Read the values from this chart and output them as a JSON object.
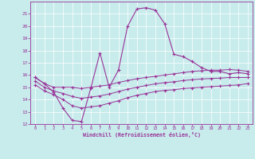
{
  "xlabel": "Windchill (Refroidissement éolien,°C)",
  "bg_color": "#c8ecec",
  "line_color": "#993399",
  "xlim": [
    -0.5,
    23.5
  ],
  "ylim": [
    12,
    22
  ],
  "yticks": [
    12,
    13,
    14,
    15,
    16,
    17,
    18,
    19,
    20,
    21
  ],
  "xticks": [
    0,
    1,
    2,
    3,
    4,
    5,
    6,
    7,
    8,
    9,
    10,
    11,
    12,
    13,
    14,
    15,
    16,
    17,
    18,
    19,
    20,
    21,
    22,
    23
  ],
  "series": {
    "main": {
      "x": [
        0,
        1,
        2,
        3,
        4,
        5,
        6,
        7,
        8,
        9,
        10,
        11,
        12,
        13,
        14,
        15,
        16,
        17,
        18,
        19,
        20,
        21,
        22,
        23
      ],
      "y": [
        15.8,
        15.3,
        14.6,
        13.3,
        12.3,
        12.2,
        14.9,
        17.8,
        15.0,
        16.4,
        20.0,
        21.4,
        21.5,
        21.3,
        20.2,
        17.7,
        17.5,
        17.1,
        16.6,
        16.3,
        16.3,
        16.1,
        16.2,
        16.1
      ]
    },
    "upper": {
      "x": [
        0,
        1,
        2,
        3,
        4,
        5,
        6,
        7,
        8,
        9,
        10,
        11,
        12,
        13,
        14,
        15,
        16,
        17,
        18,
        19,
        20,
        21,
        22,
        23
      ],
      "y": [
        15.8,
        15.3,
        15.0,
        15.0,
        15.0,
        14.9,
        15.0,
        15.1,
        15.2,
        15.4,
        15.55,
        15.7,
        15.8,
        15.9,
        16.0,
        16.1,
        16.2,
        16.3,
        16.35,
        16.4,
        16.4,
        16.45,
        16.4,
        16.3
      ]
    },
    "lower": {
      "x": [
        0,
        1,
        2,
        3,
        4,
        5,
        6,
        7,
        8,
        9,
        10,
        11,
        12,
        13,
        14,
        15,
        16,
        17,
        18,
        19,
        20,
        21,
        22,
        23
      ],
      "y": [
        15.2,
        14.7,
        14.4,
        14.0,
        13.5,
        13.3,
        13.4,
        13.5,
        13.7,
        13.9,
        14.15,
        14.35,
        14.5,
        14.65,
        14.75,
        14.8,
        14.9,
        14.95,
        15.0,
        15.05,
        15.1,
        15.15,
        15.2,
        15.3
      ]
    },
    "mid": {
      "x": [
        0,
        1,
        2,
        3,
        4,
        5,
        6,
        7,
        8,
        9,
        10,
        11,
        12,
        13,
        14,
        15,
        16,
        17,
        18,
        19,
        20,
        21,
        22,
        23
      ],
      "y": [
        15.5,
        15.0,
        14.7,
        14.5,
        14.25,
        14.1,
        14.2,
        14.3,
        14.45,
        14.65,
        14.85,
        15.0,
        15.15,
        15.28,
        15.38,
        15.45,
        15.55,
        15.62,
        15.68,
        15.72,
        15.75,
        15.8,
        15.8,
        15.8
      ]
    }
  }
}
